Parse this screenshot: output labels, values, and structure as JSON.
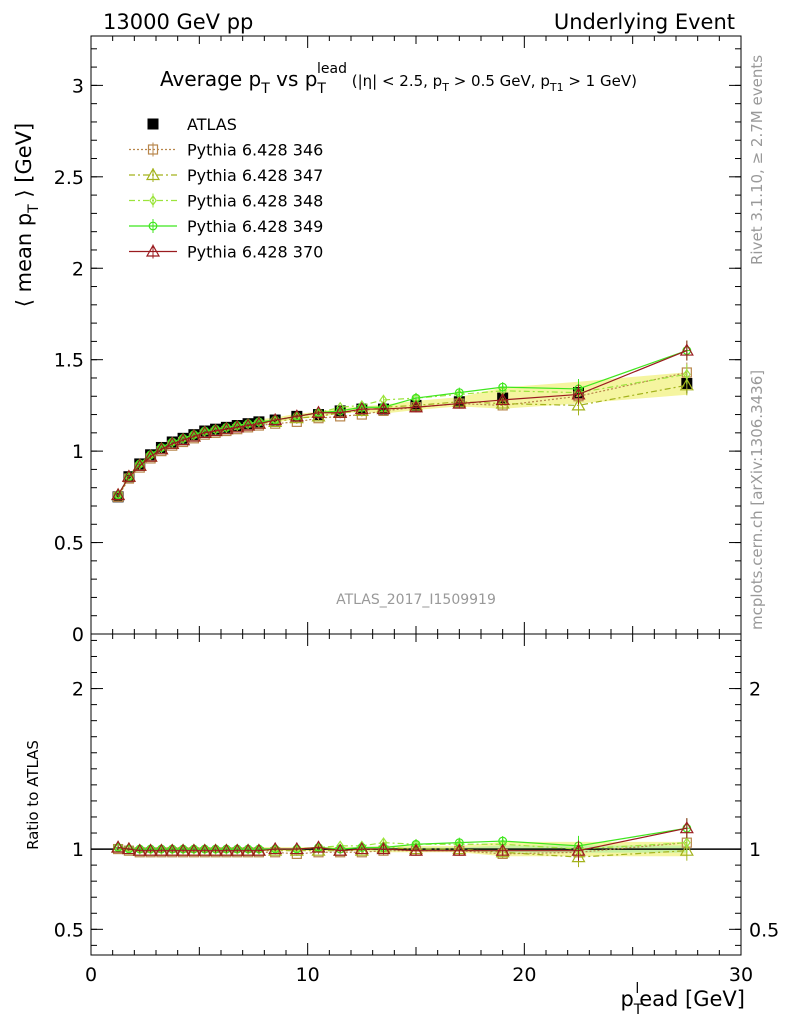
{
  "header": {
    "left": "13000 GeV pp",
    "right": "Underlying Event"
  },
  "side_labels": {
    "rivet": "Rivet 3.1.10, ≥ 2.7M events",
    "mcplots": "mcplots.cern.ch [arXiv:1306.3436]"
  },
  "watermark": "ATLAS_2017_I1509919",
  "colors": {
    "data": "#000000",
    "p346": "#b8864b",
    "p347": "#a3b21c",
    "p348": "#9ce43c",
    "p349": "#3fe61e",
    "p370": "#9a1b1f",
    "band_outer": "#f5f5a0",
    "band_inner": "#c8f0a0"
  },
  "chart_data": [
    {
      "type": "scatter",
      "panel": "main",
      "title_parts": {
        "main": "Average p",
        "sub_T": "T",
        "vs": " vs p",
        "sup_lead": "lead",
        "cuts_1": " (|η| < 2.5, p",
        "cuts_2": " > 0.5 GeV, p",
        "sub_T1": "T1",
        "cuts_3": " > 1 GeV)"
      },
      "ylabel_parts": {
        "pre": "⟨ mean p",
        "sub": "T",
        "post": " ⟩ [GeV]"
      },
      "xlim": [
        0,
        30
      ],
      "ylim": [
        0,
        3.27
      ],
      "yticks": [
        {
          "value": 0,
          "label": "0"
        },
        {
          "value": 0.5,
          "label": "0.5"
        },
        {
          "value": 1,
          "label": "1"
        },
        {
          "value": 1.5,
          "label": "1.5"
        },
        {
          "value": 2,
          "label": "2"
        },
        {
          "value": 2.5,
          "label": "2.5"
        },
        {
          "value": 3,
          "label": "3"
        }
      ],
      "x": [
        1.25,
        1.75,
        2.25,
        2.75,
        3.25,
        3.75,
        4.25,
        4.75,
        5.25,
        5.75,
        6.25,
        6.75,
        7.25,
        7.75,
        8.5,
        9.5,
        10.5,
        11.5,
        12.5,
        13.5,
        15,
        17,
        19,
        22.5,
        27.5
      ],
      "series": [
        {
          "name": "ATLAS",
          "key": "data",
          "marker": "square-filled",
          "line": "none",
          "values": [
            0.75,
            0.86,
            0.93,
            0.98,
            1.02,
            1.05,
            1.07,
            1.09,
            1.11,
            1.12,
            1.13,
            1.14,
            1.15,
            1.16,
            1.17,
            1.19,
            1.2,
            1.22,
            1.23,
            1.23,
            1.25,
            1.27,
            1.29,
            1.32,
            1.37
          ]
        },
        {
          "name": "Pythia 6.428 346",
          "key": "p346",
          "marker": "square-open",
          "line": "dotted",
          "values": [
            0.75,
            0.85,
            0.91,
            0.96,
            1.0,
            1.03,
            1.05,
            1.07,
            1.09,
            1.1,
            1.11,
            1.12,
            1.13,
            1.14,
            1.15,
            1.16,
            1.18,
            1.19,
            1.2,
            1.22,
            1.24,
            1.26,
            1.25,
            1.3,
            1.43
          ]
        },
        {
          "name": "Pythia 6.428 347",
          "key": "p347",
          "marker": "triangle-open",
          "line": "dashdot",
          "values": [
            0.76,
            0.86,
            0.92,
            0.97,
            1.01,
            1.04,
            1.06,
            1.08,
            1.1,
            1.11,
            1.12,
            1.13,
            1.14,
            1.15,
            1.16,
            1.18,
            1.19,
            1.21,
            1.22,
            1.24,
            1.25,
            1.27,
            1.26,
            1.25,
            1.36
          ]
        },
        {
          "name": "Pythia 6.428 348",
          "key": "p348",
          "marker": "diamond-open",
          "line": "dashdot",
          "values": [
            0.76,
            0.86,
            0.93,
            0.98,
            1.02,
            1.05,
            1.07,
            1.09,
            1.11,
            1.12,
            1.13,
            1.14,
            1.15,
            1.16,
            1.17,
            1.19,
            1.21,
            1.24,
            1.25,
            1.28,
            1.29,
            1.31,
            1.33,
            1.32,
            1.42
          ]
        },
        {
          "name": "Pythia 6.428 349",
          "key": "p349",
          "marker": "circle-cross",
          "line": "solid",
          "values": [
            0.76,
            0.86,
            0.93,
            0.98,
            1.02,
            1.05,
            1.07,
            1.09,
            1.11,
            1.12,
            1.13,
            1.14,
            1.15,
            1.16,
            1.17,
            1.19,
            1.21,
            1.22,
            1.24,
            1.24,
            1.29,
            1.32,
            1.35,
            1.34,
            1.55
          ]
        },
        {
          "name": "Pythia 6.428 370",
          "key": "p370",
          "marker": "triangle-open",
          "line": "solid",
          "values": [
            0.76,
            0.86,
            0.92,
            0.97,
            1.01,
            1.04,
            1.06,
            1.08,
            1.1,
            1.11,
            1.12,
            1.13,
            1.14,
            1.15,
            1.17,
            1.19,
            1.21,
            1.21,
            1.23,
            1.23,
            1.24,
            1.26,
            1.28,
            1.31,
            1.55
          ]
        }
      ]
    },
    {
      "type": "scatter",
      "panel": "ratio",
      "ylabel": "Ratio to ATLAS",
      "xlabel_parts": {
        "pre": "p",
        "sub": "T",
        "sup": "l",
        "post": "ead [GeV]"
      },
      "xlim": [
        0,
        30
      ],
      "ylim": [
        0.34,
        2.34
      ],
      "xticks": [
        {
          "value": 0,
          "label": "0"
        },
        {
          "value": 10,
          "label": "10"
        },
        {
          "value": 20,
          "label": "20"
        },
        {
          "value": 30,
          "label": "30"
        }
      ],
      "yticks": [
        {
          "value": 0.5,
          "label": "0.5"
        },
        {
          "value": 1,
          "label": "1"
        },
        {
          "value": 2,
          "label": "2"
        }
      ],
      "x": [
        1.25,
        1.75,
        2.25,
        2.75,
        3.25,
        3.75,
        4.25,
        4.75,
        5.25,
        5.75,
        6.25,
        6.75,
        7.25,
        7.75,
        8.5,
        9.5,
        10.5,
        11.5,
        12.5,
        13.5,
        15,
        17,
        19,
        22.5,
        27.5
      ],
      "series": [
        {
          "name": "Pythia 6.428 346",
          "key": "p346",
          "values": [
            1.0,
            0.99,
            0.98,
            0.98,
            0.98,
            0.98,
            0.98,
            0.98,
            0.98,
            0.98,
            0.98,
            0.98,
            0.98,
            0.98,
            0.98,
            0.97,
            0.98,
            0.98,
            0.98,
            0.99,
            0.99,
            0.99,
            0.97,
            0.98,
            1.04
          ]
        },
        {
          "name": "Pythia 6.428 347",
          "key": "p347",
          "values": [
            1.01,
            1.0,
            0.99,
            0.99,
            0.99,
            0.99,
            0.99,
            0.99,
            0.99,
            0.99,
            0.99,
            0.99,
            0.99,
            0.99,
            0.99,
            0.99,
            0.99,
            0.99,
            0.99,
            1.01,
            1.0,
            1.0,
            0.98,
            0.95,
            0.99
          ]
        },
        {
          "name": "Pythia 6.428 348",
          "key": "p348",
          "values": [
            1.01,
            1.0,
            1.0,
            1.0,
            1.0,
            1.0,
            1.0,
            1.0,
            1.0,
            1.0,
            1.0,
            1.0,
            1.0,
            1.0,
            1.0,
            1.0,
            1.01,
            1.02,
            1.02,
            1.04,
            1.03,
            1.03,
            1.03,
            1.0,
            1.04
          ]
        },
        {
          "name": "Pythia 6.428 349",
          "key": "p349",
          "values": [
            1.01,
            1.0,
            1.0,
            1.0,
            1.0,
            1.0,
            1.0,
            1.0,
            1.0,
            1.0,
            1.0,
            1.0,
            1.0,
            1.0,
            1.0,
            1.0,
            1.01,
            1.0,
            1.01,
            1.01,
            1.03,
            1.04,
            1.05,
            1.02,
            1.13
          ]
        },
        {
          "name": "Pythia 6.428 370",
          "key": "p370",
          "values": [
            1.01,
            1.0,
            0.99,
            0.99,
            0.99,
            0.99,
            0.99,
            0.99,
            0.99,
            0.99,
            0.99,
            0.99,
            0.99,
            0.99,
            1.0,
            1.0,
            1.01,
            0.99,
            1.0,
            1.0,
            0.99,
            0.99,
            0.99,
            0.99,
            1.13
          ]
        }
      ]
    }
  ]
}
